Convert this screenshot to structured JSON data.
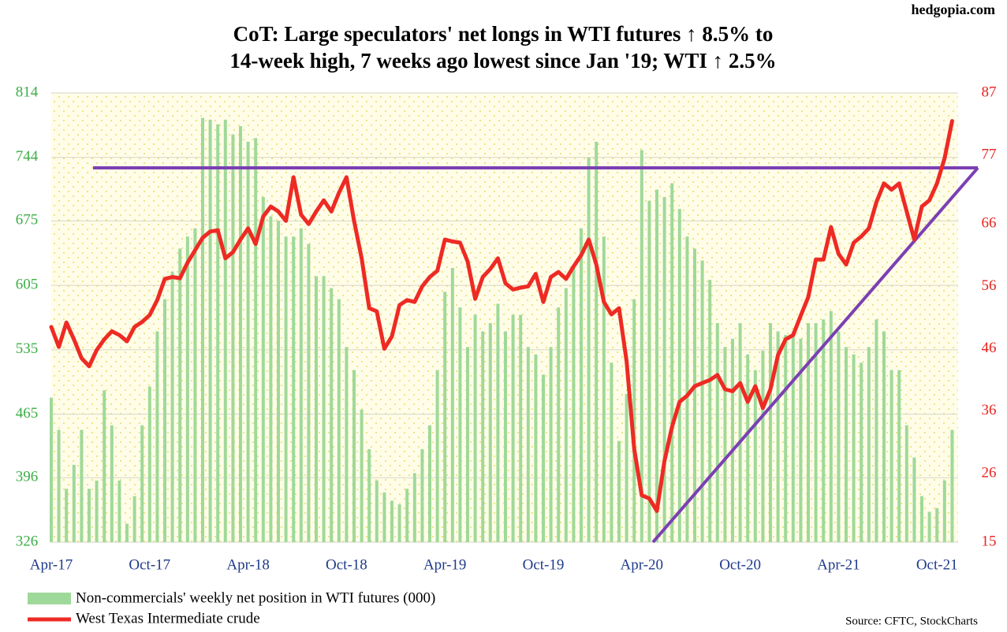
{
  "chart_data": {
    "type": "combo",
    "title": [
      "CoT: Large speculators' net longs in WTI futures ↑ 8.5% to",
      "14-week high, 7 weeks ago lowest since Jan '19; WTI ↑ 2.5%"
    ],
    "watermark": "hedgopia.com",
    "source": "Source: CFTC, StockCharts",
    "categories": [
      "Apr-17",
      null,
      null,
      null,
      null,
      null,
      null,
      null,
      null,
      null,
      null,
      null,
      null,
      "Oct-17",
      null,
      null,
      null,
      null,
      null,
      null,
      null,
      null,
      null,
      null,
      null,
      null,
      "Apr-18",
      null,
      null,
      null,
      null,
      null,
      null,
      null,
      null,
      null,
      null,
      null,
      null,
      "Oct-18",
      null,
      null,
      null,
      null,
      null,
      null,
      null,
      null,
      null,
      null,
      null,
      null,
      "Apr-19",
      null,
      null,
      null,
      null,
      null,
      null,
      null,
      null,
      null,
      null,
      null,
      null,
      "Oct-19",
      null,
      null,
      null,
      null,
      null,
      null,
      null,
      null,
      null,
      null,
      null,
      null,
      "Apr-20",
      null,
      null,
      null,
      null,
      null,
      null,
      null,
      null,
      null,
      null,
      null,
      null,
      "Oct-20",
      null,
      null,
      null,
      null,
      null,
      null,
      null,
      null,
      null,
      null,
      null,
      null,
      "Apr-21",
      null,
      null,
      null,
      null,
      null,
      null,
      null,
      null,
      null,
      null,
      null,
      null,
      "Oct-21",
      null,
      null
    ],
    "ylim": [
      326,
      814
    ],
    "yticks": [
      326,
      396,
      465,
      535,
      605,
      675,
      744,
      814
    ],
    "y2lim": [
      15,
      87
    ],
    "y2ticks": [
      15,
      26,
      36,
      46,
      56,
      66,
      77,
      87
    ],
    "grid": true,
    "series": [
      {
        "name": "Non-commercials' weekly net position in WTI futures (000)",
        "type": "bar",
        "axis": "y",
        "color": "#9fd99a",
        "values": [
          483,
          448,
          384,
          410,
          448,
          384,
          393,
          491,
          453,
          393,
          346,
          376,
          453,
          495,
          555,
          590,
          620,
          645,
          658,
          667,
          787,
          785,
          780,
          785,
          769,
          778,
          761,
          765,
          701,
          680,
          675,
          658,
          658,
          667,
          650,
          615,
          615,
          602,
          590,
          538,
          513,
          470,
          427,
          393,
          380,
          371,
          367,
          384,
          401,
          427,
          453,
          513,
          598,
          624,
          581,
          538,
          573,
          555,
          564,
          585,
          555,
          573,
          573,
          538,
          530,
          508,
          538,
          581,
          602,
          624,
          667,
          744,
          761,
          658,
          521,
          436,
          487,
          590,
          752,
          697,
          709,
          701,
          716,
          688,
          658,
          645,
          632,
          611,
          564,
          538,
          547,
          564,
          530,
          513,
          534,
          564,
          555,
          551,
          555,
          547,
          564,
          564,
          568,
          577,
          555,
          538,
          530,
          521,
          538,
          568,
          555,
          513,
          513,
          453,
          418,
          376,
          359,
          363,
          393,
          448
        ]
      },
      {
        "name": "West Texas Intermediate crude",
        "type": "line",
        "axis": "y2",
        "color": "#ee2a24",
        "values": [
          49.5,
          46.3,
          50.2,
          47.5,
          44.5,
          43.2,
          45.8,
          47.5,
          48.8,
          48.2,
          47.2,
          49.5,
          50.3,
          51.4,
          53.8,
          57.2,
          57.5,
          57.3,
          59.8,
          61.8,
          63.8,
          64.8,
          65.0,
          60.5,
          61.5,
          63.5,
          65.3,
          62.8,
          67.2,
          68.8,
          68.0,
          66.5,
          73.5,
          67.5,
          66.0,
          68.0,
          69.8,
          68.0,
          71.0,
          73.5,
          66.5,
          60.5,
          52.5,
          52.0,
          46.0,
          48.0,
          53.0,
          53.8,
          53.5,
          56.0,
          57.5,
          58.5,
          63.5,
          63.2,
          63.0,
          60.0,
          54.0,
          57.5,
          58.8,
          60.5,
          56.5,
          55.5,
          55.8,
          56.0,
          58.0,
          53.5,
          57.5,
          58.3,
          57.2,
          59.2,
          61.0,
          63.5,
          59.5,
          53.5,
          51.5,
          52.5,
          44.0,
          30.0,
          22.5,
          22.0,
          20.0,
          28.0,
          33.5,
          37.5,
          38.5,
          40.0,
          40.5,
          41.0,
          41.8,
          39.5,
          39.2,
          40.5,
          37.5,
          40.0,
          36.5,
          39.5,
          45.0,
          47.5,
          48.2,
          51.3,
          54.3,
          60.3,
          60.3,
          65.5,
          61.2,
          59.5,
          63.0,
          64.0,
          65.3,
          69.5,
          72.5,
          71.5,
          72.5,
          68.0,
          63.5,
          68.8,
          69.8,
          72.5,
          76.5,
          82.5
        ]
      }
    ]
  }
}
